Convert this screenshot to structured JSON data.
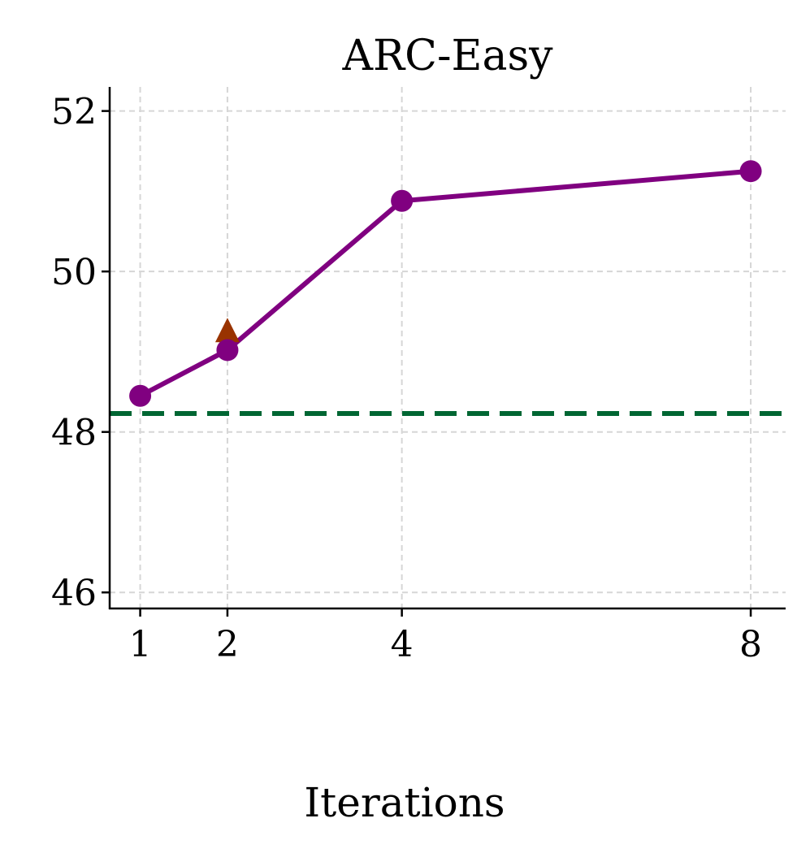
{
  "chart_data": {
    "type": "line",
    "title": "ARC-Easy",
    "xlabel": "Iterations",
    "ylabel": "",
    "x": [
      1,
      2,
      4,
      8
    ],
    "x_ticks": [
      1,
      2,
      4,
      8
    ],
    "x_tick_labels": [
      "1",
      "2",
      "4",
      "8"
    ],
    "y_ticks": [
      46,
      48,
      50,
      52
    ],
    "y_tick_labels": [
      "46",
      "48",
      "50",
      "52"
    ],
    "xlim": [
      0.65,
      8.4
    ],
    "ylim": [
      45.8,
      52.3
    ],
    "grid": true,
    "legend": "none",
    "series": [
      {
        "marker": "circle",
        "color": "#800080",
        "x": [
          1,
          2,
          4,
          8
        ],
        "values": [
          48.45,
          49.02,
          50.88,
          51.25
        ]
      }
    ],
    "extra_points": [
      {
        "x": 2,
        "y": 49.25,
        "marker": "triangle",
        "color": "#993300"
      }
    ],
    "reference_lines": [
      {
        "orientation": "horizontal",
        "y": 48.23,
        "style": "dashed",
        "color": "#006633"
      }
    ]
  }
}
